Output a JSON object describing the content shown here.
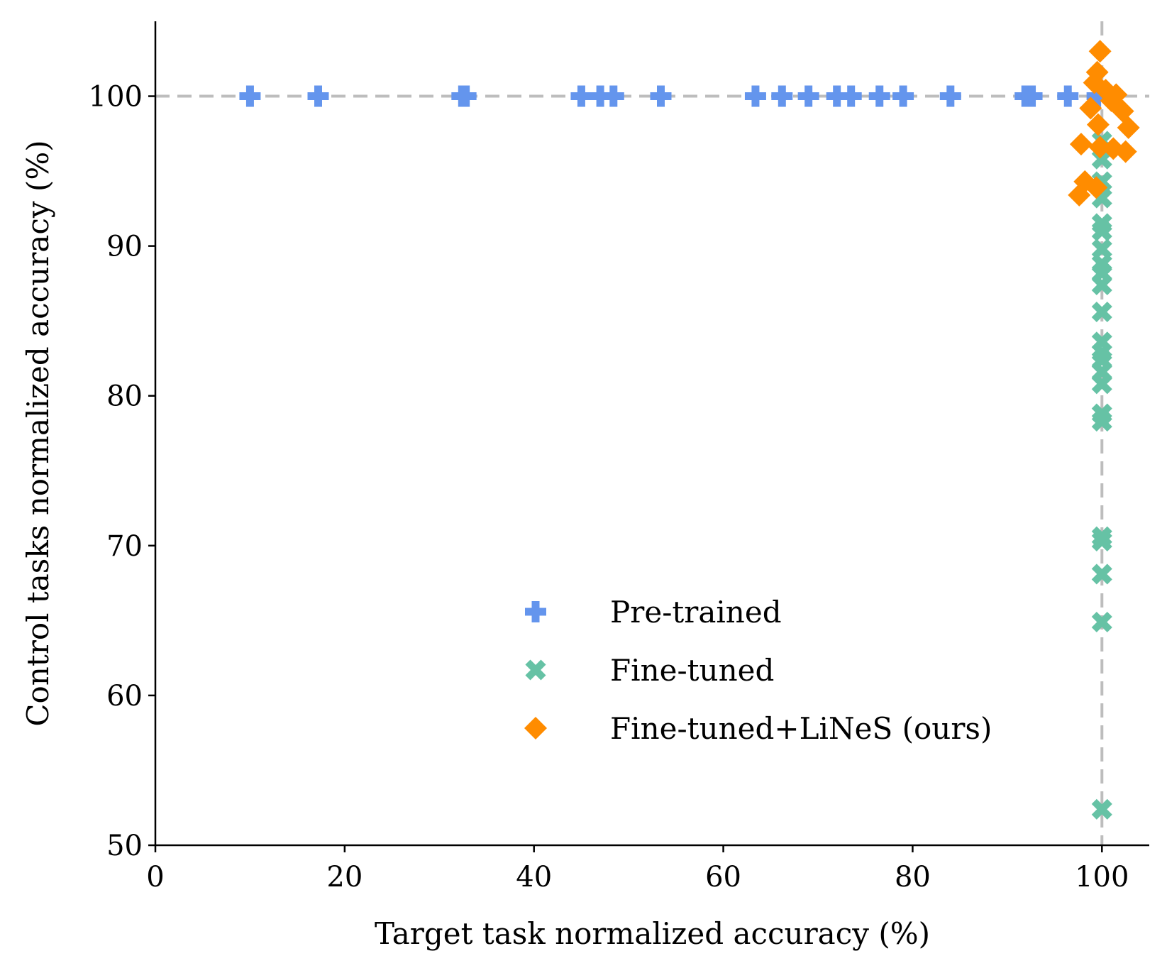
{
  "chart_data": {
    "type": "scatter",
    "xlabel": "Target task normalized accuracy (%)",
    "ylabel": "Control tasks normalized accuracy (%)",
    "xlim": [
      0,
      105
    ],
    "ylim": [
      50,
      105
    ],
    "xticks": [
      "0",
      "20",
      "40",
      "60",
      "80",
      "100"
    ],
    "yticks": [
      "50",
      "60",
      "70",
      "80",
      "90",
      "100"
    ],
    "reference_lines": {
      "x": 100,
      "y": 100,
      "style": "dashed",
      "color": "#bdbdbd"
    },
    "grid": false,
    "legend_position": "lower-center",
    "series": [
      {
        "name": "Pre-trained",
        "marker": "plus",
        "color": "#6495ed",
        "x": [
          10,
          17.2,
          32.4,
          32.8,
          45,
          47,
          48.4,
          53.4,
          63.4,
          66.2,
          69,
          72,
          73.5,
          76.5,
          79,
          84,
          91.9,
          92.6,
          96.4,
          99.5
        ],
        "y": [
          100,
          100,
          100,
          100,
          100,
          100,
          100,
          100,
          100,
          100,
          100,
          100,
          100,
          100,
          100,
          100,
          100,
          100,
          100,
          100
        ]
      },
      {
        "name": "Fine-tuned",
        "marker": "x",
        "color": "#66c2a5",
        "x": [
          100,
          100,
          100,
          100,
          100,
          100,
          100,
          100,
          100,
          100,
          100,
          100,
          100,
          100,
          100,
          100,
          100,
          100,
          100,
          100,
          100,
          100,
          100
        ],
        "y": [
          95.8,
          94.3,
          91.5,
          91.0,
          89.8,
          88.8,
          88.2,
          87.4,
          85.6,
          83.6,
          82.9,
          82.4,
          81.6,
          80.8,
          78.8,
          78.3,
          70.6,
          70.3,
          68.1,
          64.9,
          52.4,
          97.0,
          93.2
        ]
      },
      {
        "name": "Fine-tuned+LiNeS (ours)",
        "marker": "diamond",
        "color": "#ff8c00",
        "x": [
          99.8,
          99.5,
          99.2,
          98.8,
          101.5,
          102.2,
          102.8,
          101.0,
          99.6,
          97.8,
          99.8,
          101.2,
          102.5,
          98.2,
          99.4,
          97.6,
          100.4
        ],
        "y": [
          103,
          101.6,
          100.9,
          99.2,
          100.1,
          99,
          97.9,
          99.7,
          98.1,
          96.8,
          96.6,
          96.5,
          96.3,
          94.3,
          93.9,
          93.4,
          100.4
        ]
      }
    ]
  }
}
